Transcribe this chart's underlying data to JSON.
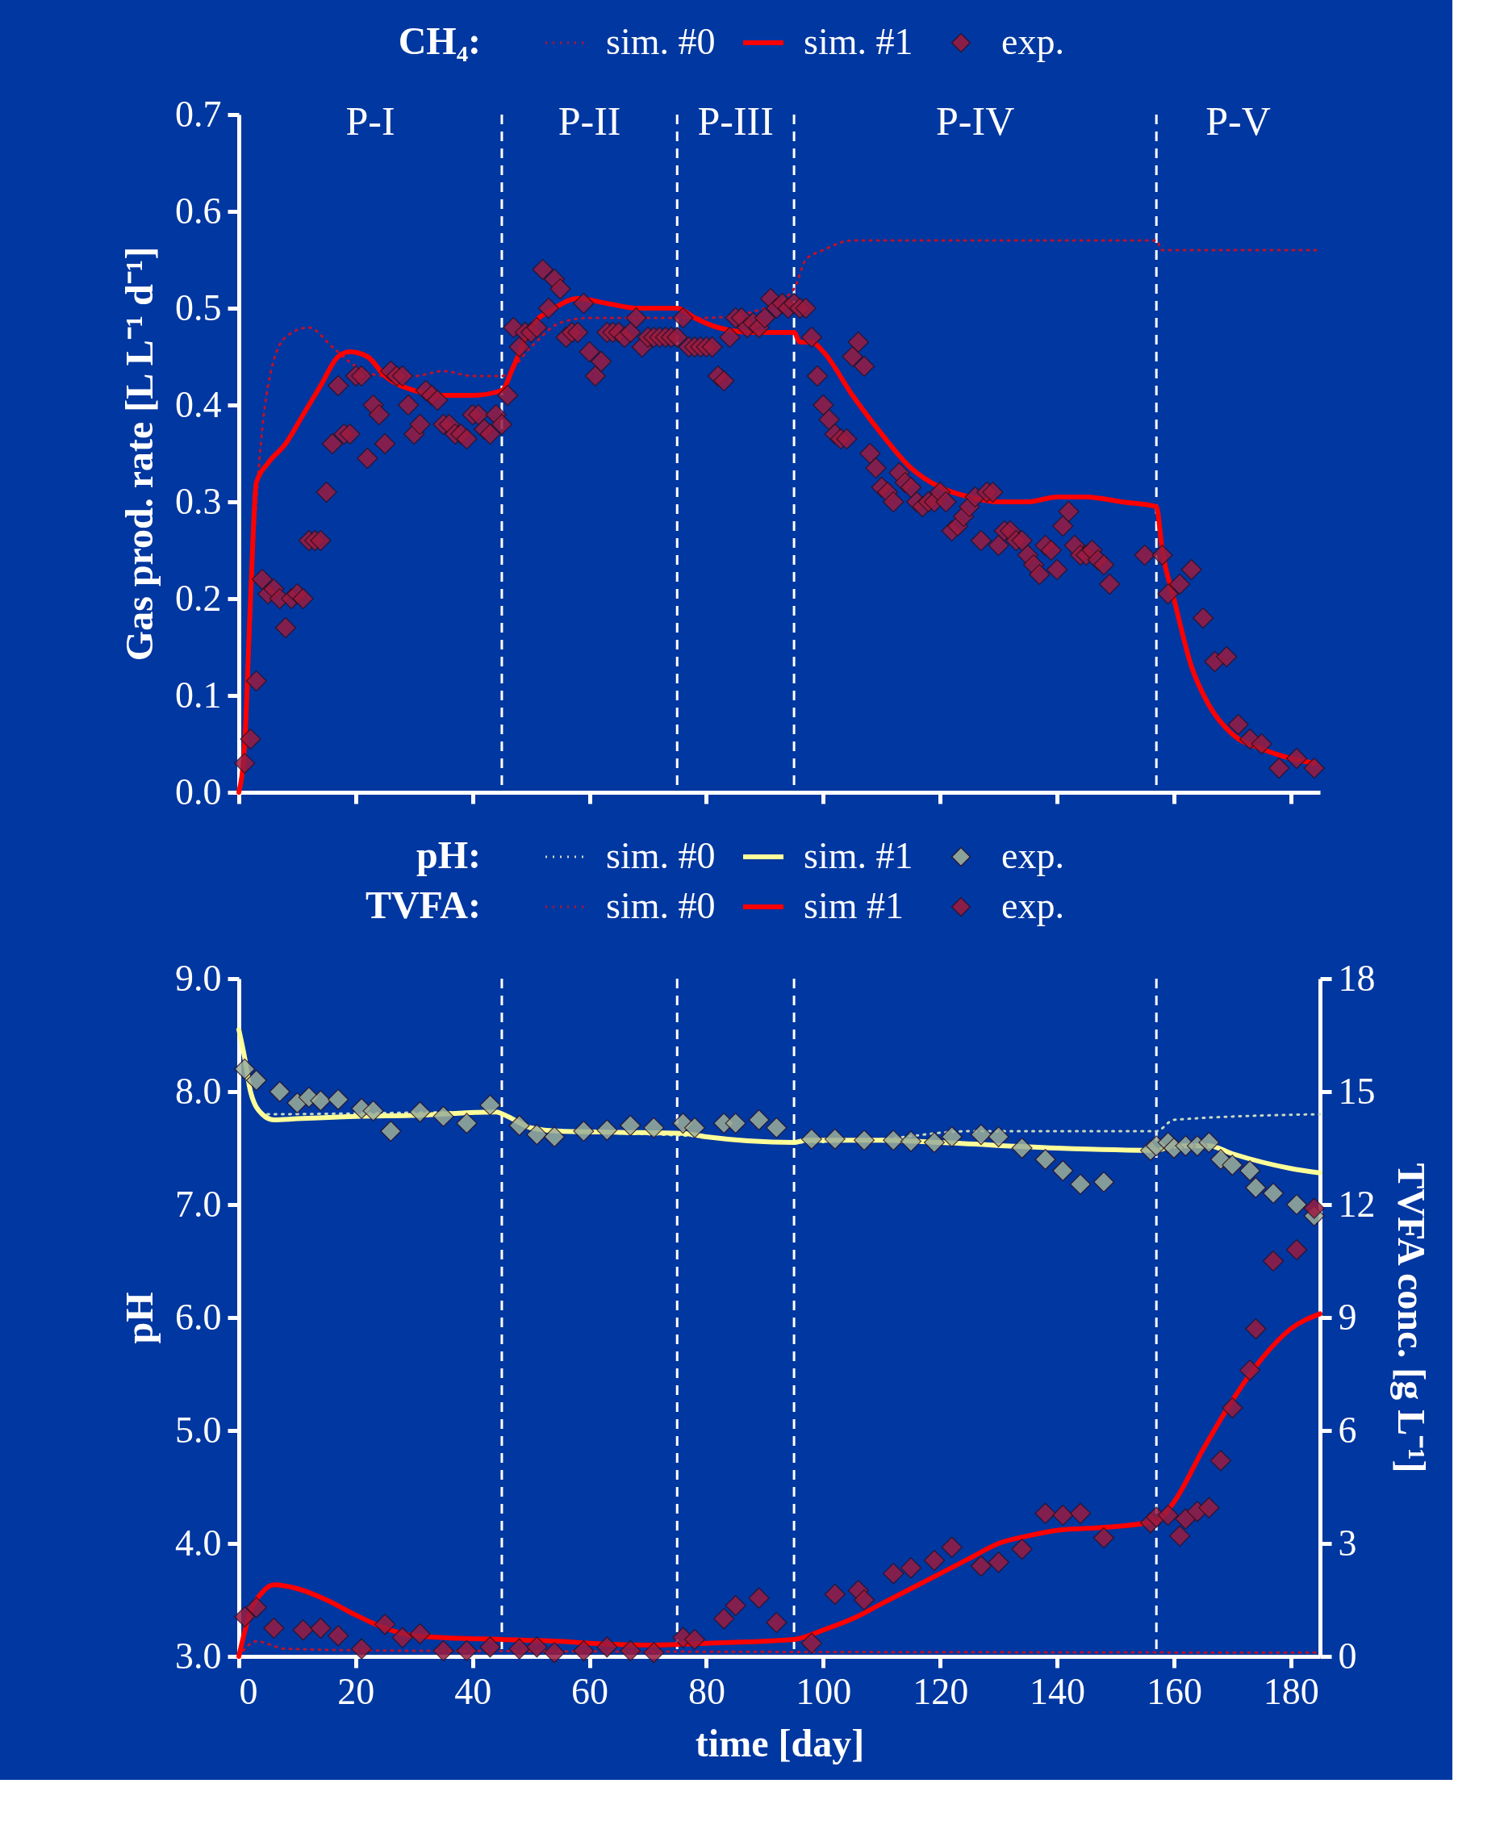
{
  "chart_data": [
    {
      "type": "line",
      "legend_title": "CH₄:",
      "legend": "top",
      "ylabel": "Gas prod. rate [L L⁻¹ d⁻¹]",
      "tick_labels": "y",
      "xlim": [
        0,
        185
      ],
      "xticks": [
        0,
        20,
        40,
        60,
        80,
        100,
        120,
        140,
        160,
        180
      ],
      "ylim": [
        0,
        0.7
      ],
      "yticks": [
        {
          "value": 0,
          "label": "0.0"
        },
        0.1,
        0.2,
        0.3,
        0.4,
        0.5,
        0.6,
        0.7
      ],
      "series": [
        {
          "name": "sim. #0",
          "color": "#c0102a",
          "line_style": "dotted",
          "x": [
            0,
            1,
            3,
            5,
            8,
            12,
            16,
            20,
            25,
            30,
            35,
            40,
            45,
            50,
            55,
            60,
            70,
            80,
            90,
            95,
            97,
            100,
            105,
            157,
            158,
            185
          ],
          "values": [
            0,
            0.05,
            0.3,
            0.42,
            0.47,
            0.48,
            0.46,
            0.44,
            0.43,
            0.43,
            0.435,
            0.43,
            0.43,
            0.46,
            0.485,
            0.49,
            0.49,
            0.49,
            0.5,
            0.52,
            0.55,
            0.56,
            0.57,
            0.57,
            0.56,
            0.56
          ]
        },
        {
          "name": "sim. #1",
          "color": "#ff0000",
          "line_style": "solid",
          "x": [
            0,
            1,
            2,
            3,
            5,
            8,
            11,
            14,
            17,
            19,
            22,
            25,
            30,
            35,
            40,
            45,
            47,
            50,
            54,
            58,
            63,
            68,
            75,
            78,
            82,
            88,
            95,
            96,
            98,
            100,
            105,
            110,
            115,
            120,
            125,
            130,
            135,
            140,
            145,
            151,
            157,
            158,
            160,
            163,
            166,
            170,
            175,
            180,
            184
          ],
          "values": [
            0,
            0.05,
            0.2,
            0.32,
            0.34,
            0.36,
            0.39,
            0.42,
            0.45,
            0.455,
            0.45,
            0.43,
            0.415,
            0.41,
            0.41,
            0.415,
            0.44,
            0.48,
            0.5,
            0.51,
            0.505,
            0.5,
            0.5,
            0.49,
            0.48,
            0.475,
            0.475,
            0.465,
            0.465,
            0.455,
            0.41,
            0.37,
            0.335,
            0.315,
            0.305,
            0.3,
            0.3,
            0.305,
            0.305,
            0.3,
            0.295,
            0.25,
            0.2,
            0.13,
            0.09,
            0.06,
            0.045,
            0.035,
            0.03
          ]
        },
        {
          "name": "exp.",
          "type": "scatter",
          "marker": "diamond",
          "color": "#9b1b40",
          "x": [
            1,
            2,
            3,
            4,
            5,
            6,
            7,
            8,
            9,
            10,
            11,
            12,
            13,
            14,
            15,
            16,
            17,
            18,
            19,
            20,
            21,
            22,
            23,
            24,
            25,
            26,
            27,
            28,
            29,
            30,
            31,
            32,
            33,
            34,
            35,
            36,
            37,
            38,
            39,
            40,
            41,
            42,
            43,
            44,
            45,
            46,
            47,
            48,
            49,
            50,
            51,
            52,
            53,
            54,
            55,
            56,
            57,
            58,
            59,
            60,
            61,
            62,
            63,
            64,
            65,
            66,
            67,
            68,
            69,
            70,
            71,
            72,
            73,
            74,
            75,
            76,
            77,
            78,
            79,
            80,
            81,
            82,
            83,
            84,
            85,
            86,
            87,
            88,
            89,
            90,
            91,
            92,
            93,
            94,
            95,
            96,
            97,
            98,
            99,
            100,
            101,
            102,
            103,
            104,
            105,
            106,
            107,
            108,
            109,
            110,
            111,
            112,
            113,
            114,
            115,
            116,
            117,
            118,
            119,
            120,
            121,
            122,
            123,
            124,
            125,
            126,
            127,
            128,
            129,
            130,
            131,
            132,
            133,
            134,
            135,
            136,
            137,
            138,
            139,
            140,
            141,
            142,
            143,
            144,
            145,
            146,
            147,
            148,
            149,
            155,
            158,
            159,
            161,
            163,
            165,
            167,
            169,
            171,
            173,
            175,
            178,
            181,
            184
          ],
          "values": [
            0.03,
            0.055,
            0.115,
            0.22,
            0.205,
            0.21,
            0.2,
            0.17,
            0.2,
            0.205,
            0.2,
            0.26,
            0.26,
            0.26,
            0.31,
            0.36,
            0.42,
            0.37,
            0.37,
            0.43,
            0.43,
            0.345,
            0.4,
            0.39,
            0.36,
            0.435,
            0.43,
            0.43,
            0.4,
            0.37,
            0.38,
            0.415,
            0.41,
            0.405,
            0.38,
            0.38,
            0.37,
            0.37,
            0.365,
            0.39,
            0.39,
            0.375,
            0.37,
            0.39,
            0.38,
            0.41,
            0.48,
            0.46,
            0.475,
            0.475,
            0.48,
            0.54,
            0.5,
            0.53,
            0.52,
            0.47,
            0.475,
            0.475,
            0.505,
            0.455,
            0.43,
            0.445,
            0.475,
            0.475,
            0.475,
            0.47,
            0.475,
            0.49,
            0.46,
            0.47,
            0.47,
            0.47,
            0.47,
            0.47,
            0.47,
            0.49,
            0.46,
            0.46,
            0.46,
            0.46,
            0.46,
            0.43,
            0.425,
            0.47,
            0.49,
            0.49,
            0.48,
            0.485,
            0.48,
            0.49,
            0.51,
            0.5,
            0.505,
            0.5,
            0.505,
            0.5,
            0.5,
            0.47,
            0.43,
            0.4,
            0.385,
            0.37,
            0.365,
            0.365,
            0.45,
            0.465,
            0.44,
            0.35,
            0.335,
            0.315,
            0.31,
            0.3,
            0.33,
            0.32,
            0.315,
            0.3,
            0.295,
            0.3,
            0.3,
            0.31,
            0.3,
            0.27,
            0.275,
            0.285,
            0.295,
            0.305,
            0.26,
            0.31,
            0.31,
            0.255,
            0.27,
            0.27,
            0.26,
            0.26,
            0.245,
            0.235,
            0.225,
            0.255,
            0.25,
            0.23,
            0.275,
            0.29,
            0.255,
            0.245,
            0.245,
            0.25,
            0.24,
            0.235,
            0.215,
            0.245,
            0.245,
            0.205,
            0.215,
            0.23,
            0.18,
            0.135,
            0.14,
            0.07,
            0.055,
            0.05,
            0.025,
            0.035,
            0.025
          ]
        }
      ],
      "ref_lines": [
        {
          "axis": "x",
          "value": 45,
          "color": "#ffffff",
          "line_style": "dashed"
        },
        {
          "axis": "x",
          "value": 75,
          "color": "#ffffff",
          "line_style": "dashed"
        },
        {
          "axis": "x",
          "value": 95,
          "color": "#ffffff",
          "line_style": "dashed"
        },
        {
          "axis": "x",
          "value": 157,
          "color": "#ffffff",
          "line_style": "dashed"
        }
      ],
      "annotations": [
        "P-I",
        "P-II",
        "P-III",
        "P-IV",
        "P-V"
      ]
    },
    {
      "type": "line",
      "legend_title": [
        "pH:",
        "TVFA:"
      ],
      "legend": "top",
      "xlabel": "time [day]",
      "ylabel": "pH",
      "y2label": "TVFA conc. [g L⁻¹]",
      "xlim": [
        0,
        185
      ],
      "xticks": [
        0,
        20,
        40,
        60,
        80,
        100,
        120,
        140,
        160,
        180
      ],
      "ylim": [
        3,
        9
      ],
      "yticks": [
        {
          "value": 3,
          "label": "3.0"
        },
        {
          "value": 4,
          "label": "4.0"
        },
        {
          "value": 5,
          "label": "5.0"
        },
        {
          "value": 6,
          "label": "6.0"
        },
        {
          "value": 7,
          "label": "7.0"
        },
        {
          "value": 8,
          "label": "8.0"
        },
        {
          "value": 9,
          "label": "9.0"
        }
      ],
      "y2lim": [
        0,
        18
      ],
      "y2ticks": [
        0,
        3,
        6,
        9,
        12,
        15,
        18
      ],
      "series": [
        {
          "name": "sim. #0",
          "color": "#c8d8c0",
          "line_style": "dotted",
          "x": [
            0,
            4,
            44,
            50,
            80,
            95,
            110,
            125,
            157,
            160,
            185
          ],
          "values": [
            8.55,
            7.8,
            7.82,
            7.68,
            7.6,
            7.55,
            7.58,
            7.65,
            7.65,
            7.75,
            7.8
          ]
        },
        {
          "name": "sim. #1",
          "color": "#ffff99",
          "line_style": "solid",
          "x": [
            0,
            1,
            2,
            4,
            6,
            10,
            20,
            30,
            44,
            46,
            50,
            55,
            65,
            76,
            80,
            95,
            97,
            110,
            120,
            140,
            157,
            160,
            166,
            170,
            180,
            185
          ],
          "values": [
            8.55,
            8.3,
            8.0,
            7.8,
            7.75,
            7.76,
            7.78,
            7.79,
            7.82,
            7.78,
            7.68,
            7.65,
            7.64,
            7.63,
            7.6,
            7.55,
            7.57,
            7.57,
            7.55,
            7.5,
            7.48,
            7.52,
            7.52,
            7.45,
            7.32,
            7.28
          ]
        },
        {
          "name": "exp.",
          "type": "scatter",
          "marker": "diamond",
          "color": "#9aae9a",
          "x": [
            1,
            3,
            7,
            10,
            12,
            14,
            17,
            21,
            23,
            26,
            31,
            35,
            39,
            43,
            48,
            51,
            54,
            59,
            63,
            67,
            71,
            76,
            78,
            83,
            85,
            89,
            92,
            98,
            102,
            106,
            107,
            112,
            115,
            119,
            122,
            127,
            130,
            134,
            138,
            141,
            144,
            148,
            156,
            157,
            159,
            160,
            162,
            164,
            166,
            168,
            170,
            173,
            174,
            177,
            181,
            184
          ],
          "values": [
            8.2,
            8.1,
            8.0,
            7.9,
            7.95,
            7.92,
            7.93,
            7.85,
            7.83,
            7.65,
            7.82,
            7.78,
            7.72,
            7.88,
            7.7,
            7.62,
            7.6,
            7.65,
            7.66,
            7.7,
            7.68,
            7.72,
            7.68,
            7.72,
            7.72,
            7.75,
            7.68,
            7.58,
            7.58,
            null,
            7.57,
            7.57,
            7.56,
            7.55,
            7.6,
            7.62,
            7.6,
            7.5,
            7.4,
            7.3,
            7.18,
            7.2,
            7.48,
            7.52,
            7.55,
            7.5,
            7.52,
            7.52,
            7.55,
            7.4,
            7.35,
            7.3,
            7.15,
            7.1,
            7.0,
            6.9
          ]
        },
        {
          "name": "sim. #0",
          "axis": "y2",
          "color": "#c0102a",
          "line_style": "dotted",
          "x": [
            0,
            3,
            8,
            30,
            185
          ],
          "values": [
            0,
            0.4,
            0.2,
            0.15,
            0.1
          ]
        },
        {
          "name": "sim #1",
          "axis": "y2",
          "color": "#ff0000",
          "line_style": "solid",
          "x": [
            0,
            2,
            4,
            6,
            10,
            15,
            20,
            25,
            30,
            35,
            45,
            55,
            60,
            70,
            80,
            95,
            100,
            105,
            110,
            115,
            120,
            125,
            130,
            135,
            140,
            145,
            150,
            157,
            160,
            165,
            170,
            175,
            180,
            185
          ],
          "values": [
            0,
            1.2,
            1.7,
            1.9,
            1.8,
            1.5,
            1.1,
            0.75,
            0.55,
            0.5,
            0.45,
            0.4,
            0.35,
            0.3,
            0.35,
            0.45,
            0.7,
            1.0,
            1.4,
            1.8,
            2.2,
            2.6,
            3.0,
            3.2,
            3.35,
            3.4,
            3.45,
            3.6,
            4.1,
            5.5,
            6.8,
            7.9,
            8.7,
            9.1
          ]
        },
        {
          "name": "exp.",
          "axis": "y2",
          "type": "scatter",
          "marker": "diamond",
          "color": "#9b1b40",
          "x": [
            1,
            3,
            6,
            11,
            14,
            17,
            21,
            25,
            28,
            31,
            35,
            39,
            43,
            48,
            51,
            54,
            59,
            63,
            67,
            71,
            76,
            78,
            83,
            85,
            89,
            92,
            98,
            102,
            106,
            107,
            112,
            115,
            119,
            122,
            127,
            130,
            134,
            138,
            141,
            144,
            148,
            156,
            157,
            159,
            161,
            162,
            164,
            166,
            168,
            170,
            173,
            174,
            177,
            181,
            184
          ],
          "values": [
            1.05,
            1.3,
            0.75,
            0.7,
            0.75,
            0.55,
            0.2,
            0.85,
            0.5,
            0.6,
            0.15,
            0.15,
            0.25,
            0.2,
            0.25,
            0.1,
            0.15,
            0.25,
            0.15,
            0.1,
            0.5,
            0.45,
            1.0,
            1.35,
            1.55,
            0.9,
            0.35,
            1.65,
            1.75,
            1.5,
            2.2,
            2.35,
            2.55,
            2.9,
            2.4,
            2.5,
            2.85,
            3.8,
            3.75,
            3.8,
            3.15,
            3.55,
            3.7,
            3.75,
            3.2,
            3.65,
            3.85,
            3.95,
            5.2,
            6.6,
            7.6,
            8.7,
            10.5,
            10.8,
            11.9
          ]
        }
      ],
      "ref_lines": [
        {
          "axis": "x",
          "value": 45,
          "color": "#ffffff",
          "line_style": "dashed"
        },
        {
          "axis": "x",
          "value": 75,
          "color": "#ffffff",
          "line_style": "dashed"
        },
        {
          "axis": "x",
          "value": 95,
          "color": "#ffffff",
          "line_style": "dashed"
        },
        {
          "axis": "x",
          "value": 157,
          "color": "#ffffff",
          "line_style": "dashed"
        }
      ]
    }
  ]
}
